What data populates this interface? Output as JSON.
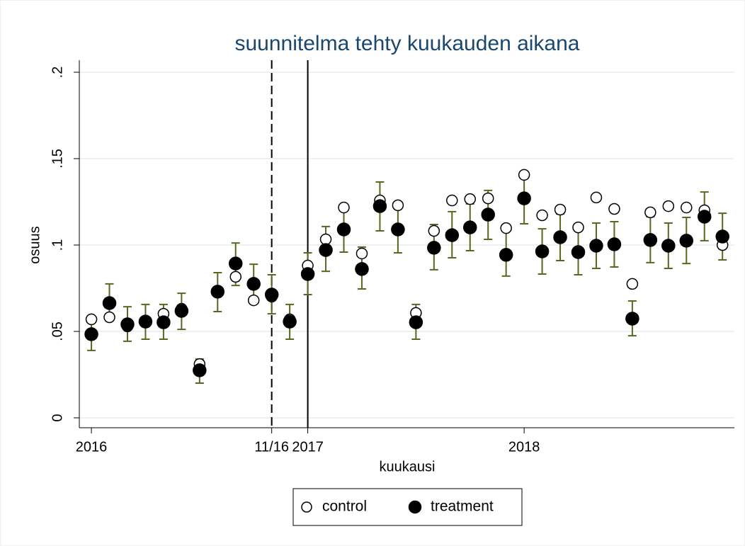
{
  "chart_data": {
    "type": "scatter",
    "title": "suunnitelma tehty kuukauden aikana",
    "x_label": "kuukausi",
    "y_label": "osuus",
    "x": [
      0,
      1,
      2,
      3,
      4,
      5,
      6,
      7,
      8,
      9,
      10,
      11,
      12,
      13,
      14,
      15,
      16,
      17,
      18,
      19,
      20,
      21,
      22,
      23,
      24,
      25,
      26,
      27,
      28,
      29,
      30,
      31,
      32,
      33,
      34,
      35
    ],
    "series": [
      {
        "name": "control",
        "color": "#000000",
        "marker": "hollow",
        "values": [
          0.057,
          0.0582,
          0.0529,
          0.0557,
          0.0602,
          0.0631,
          0.0311,
          0.0734,
          0.0816,
          0.068,
          0.0701,
          0.057,
          0.0881,
          0.1033,
          0.1217,
          0.0951,
          0.1258,
          0.123,
          0.0607,
          0.1082,
          0.1258,
          0.1266,
          0.127,
          0.1098,
          0.1406,
          0.1172,
          0.1205,
          0.1102,
          0.1275,
          0.1209,
          0.0775,
          0.1189,
          0.1225,
          0.1217,
          0.1201,
          0.1
        ]
      },
      {
        "name": "treatment",
        "color": "#000000",
        "marker": "filled",
        "error_color": "#56691f",
        "values": [
          0.0484,
          0.0664,
          0.0541,
          0.0557,
          0.0553,
          0.0619,
          0.0275,
          0.073,
          0.0893,
          0.0775,
          0.0713,
          0.0557,
          0.0832,
          0.0971,
          0.109,
          0.0861,
          0.1225,
          0.109,
          0.0553,
          0.0984,
          0.1057,
          0.1102,
          0.1176,
          0.0943,
          0.127,
          0.0963,
          0.1045,
          0.0959,
          0.0996,
          0.1004,
          0.0574,
          0.1029,
          0.0996,
          0.1025,
          0.1164,
          0.1049
        ],
        "ci_high": [
          0.0574,
          0.0775,
          0.0643,
          0.0656,
          0.0656,
          0.0721,
          0.034,
          0.084,
          0.1012,
          0.0889,
          0.0828,
          0.0656,
          0.0955,
          0.1107,
          0.123,
          0.0988,
          0.1365,
          0.1221,
          0.0656,
          0.1119,
          0.1193,
          0.1238,
          0.1316,
          0.1082,
          0.1414,
          0.1094,
          0.118,
          0.1094,
          0.1127,
          0.1135,
          0.0676,
          0.1164,
          0.1127,
          0.116,
          0.1307,
          0.1184
        ],
        "ci_low": [
          0.039,
          0.0578,
          0.0443,
          0.0455,
          0.0455,
          0.0512,
          0.0201,
          0.0615,
          0.0766,
          0.0664,
          0.0602,
          0.0455,
          0.0713,
          0.0848,
          0.0959,
          0.0746,
          0.1082,
          0.0955,
          0.0455,
          0.0857,
          0.0926,
          0.0967,
          0.1033,
          0.082,
          0.1123,
          0.0832,
          0.091,
          0.0828,
          0.0865,
          0.0873,
          0.0475,
          0.0898,
          0.0865,
          0.0893,
          0.1025,
          0.0914
        ]
      }
    ],
    "xlim": [
      -0.67,
      35.66
    ],
    "xticks": [
      {
        "value": 0,
        "label": "2016"
      },
      {
        "value": 10,
        "label": "11/16"
      },
      {
        "value": 12,
        "label": "2017"
      },
      {
        "value": 24,
        "label": "2018"
      }
    ],
    "ylim": [
      0,
      0.2
    ],
    "yticks": [
      0,
      {
        "value": 0.05,
        "label": ".05"
      },
      {
        "value": 0.1,
        "label": ".1"
      },
      {
        "value": 0.15,
        "label": ".15"
      },
      {
        "value": 0.2,
        "label": ".2"
      }
    ],
    "vlines": [
      {
        "x": 10,
        "style": "dashed"
      },
      {
        "x": 12,
        "style": "solid"
      }
    ],
    "grid": true,
    "legend": "bottom"
  }
}
